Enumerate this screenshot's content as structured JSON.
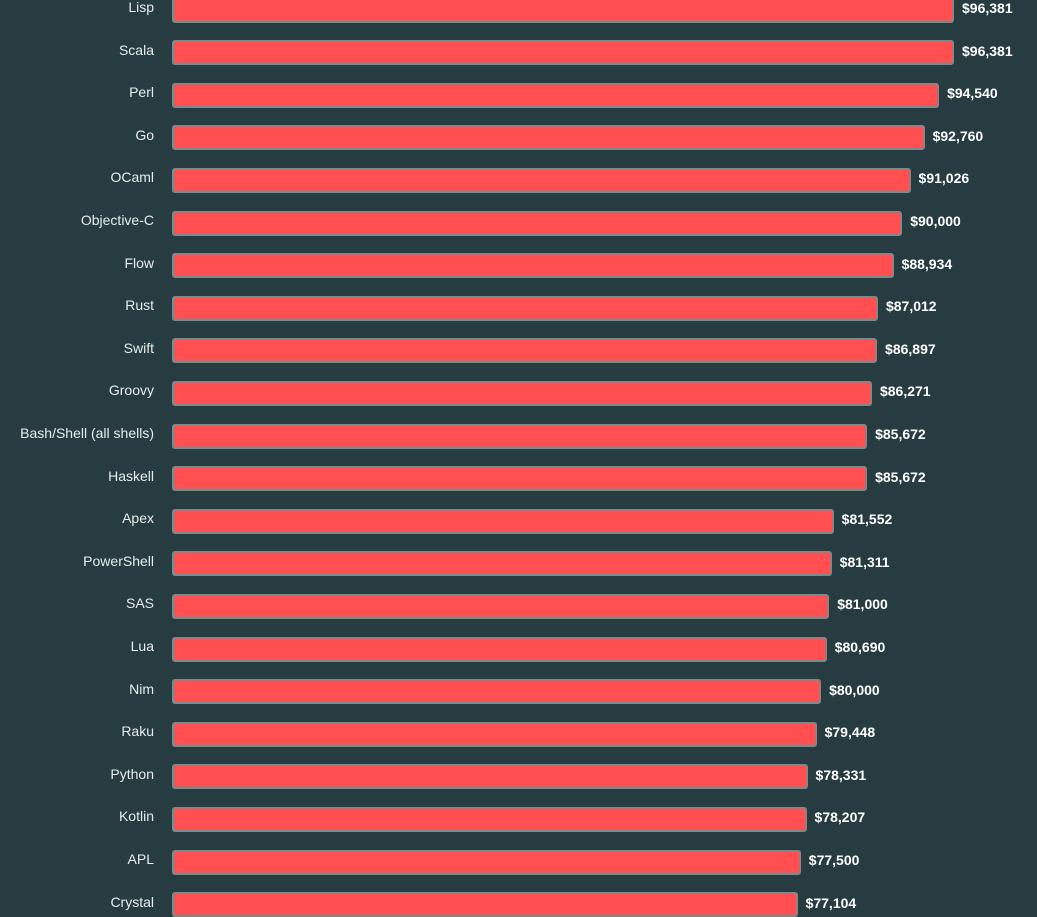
{
  "chart_data": {
    "type": "bar",
    "orientation": "horizontal",
    "value_prefix": "$",
    "bar_color": "#ff4f50",
    "bar_border_color": "#7d8a8c",
    "background_color": "#263c41",
    "label_color": "#e8ecec",
    "value_label_color": "#ffffff",
    "grid": false,
    "categories": [
      "Lisp",
      "Scala",
      "Perl",
      "Go",
      "OCaml",
      "Objective-C",
      "Flow",
      "Rust",
      "Swift",
      "Groovy",
      "Bash/Shell (all shells)",
      "Haskell",
      "Apex",
      "PowerShell",
      "SAS",
      "Lua",
      "Nim",
      "Raku",
      "Python",
      "Kotlin",
      "APL",
      "Crystal"
    ],
    "values": [
      96381,
      96381,
      94540,
      92760,
      91026,
      90000,
      88934,
      87012,
      86897,
      86271,
      85672,
      85672,
      81552,
      81311,
      81000,
      80690,
      80000,
      79448,
      78331,
      78207,
      77500,
      77104
    ],
    "value_labels": [
      "$96,381",
      "$96,381",
      "$94,540",
      "$92,760",
      "$91,026",
      "$90,000",
      "$88,934",
      "$87,012",
      "$86,897",
      "$86,271",
      "$85,672",
      "$85,672",
      "$81,552",
      "$81,311",
      "$81,000",
      "$80,690",
      "$80,000",
      "$79,448",
      "$78,331",
      "$78,207",
      "$77,500",
      "$77,104"
    ]
  }
}
